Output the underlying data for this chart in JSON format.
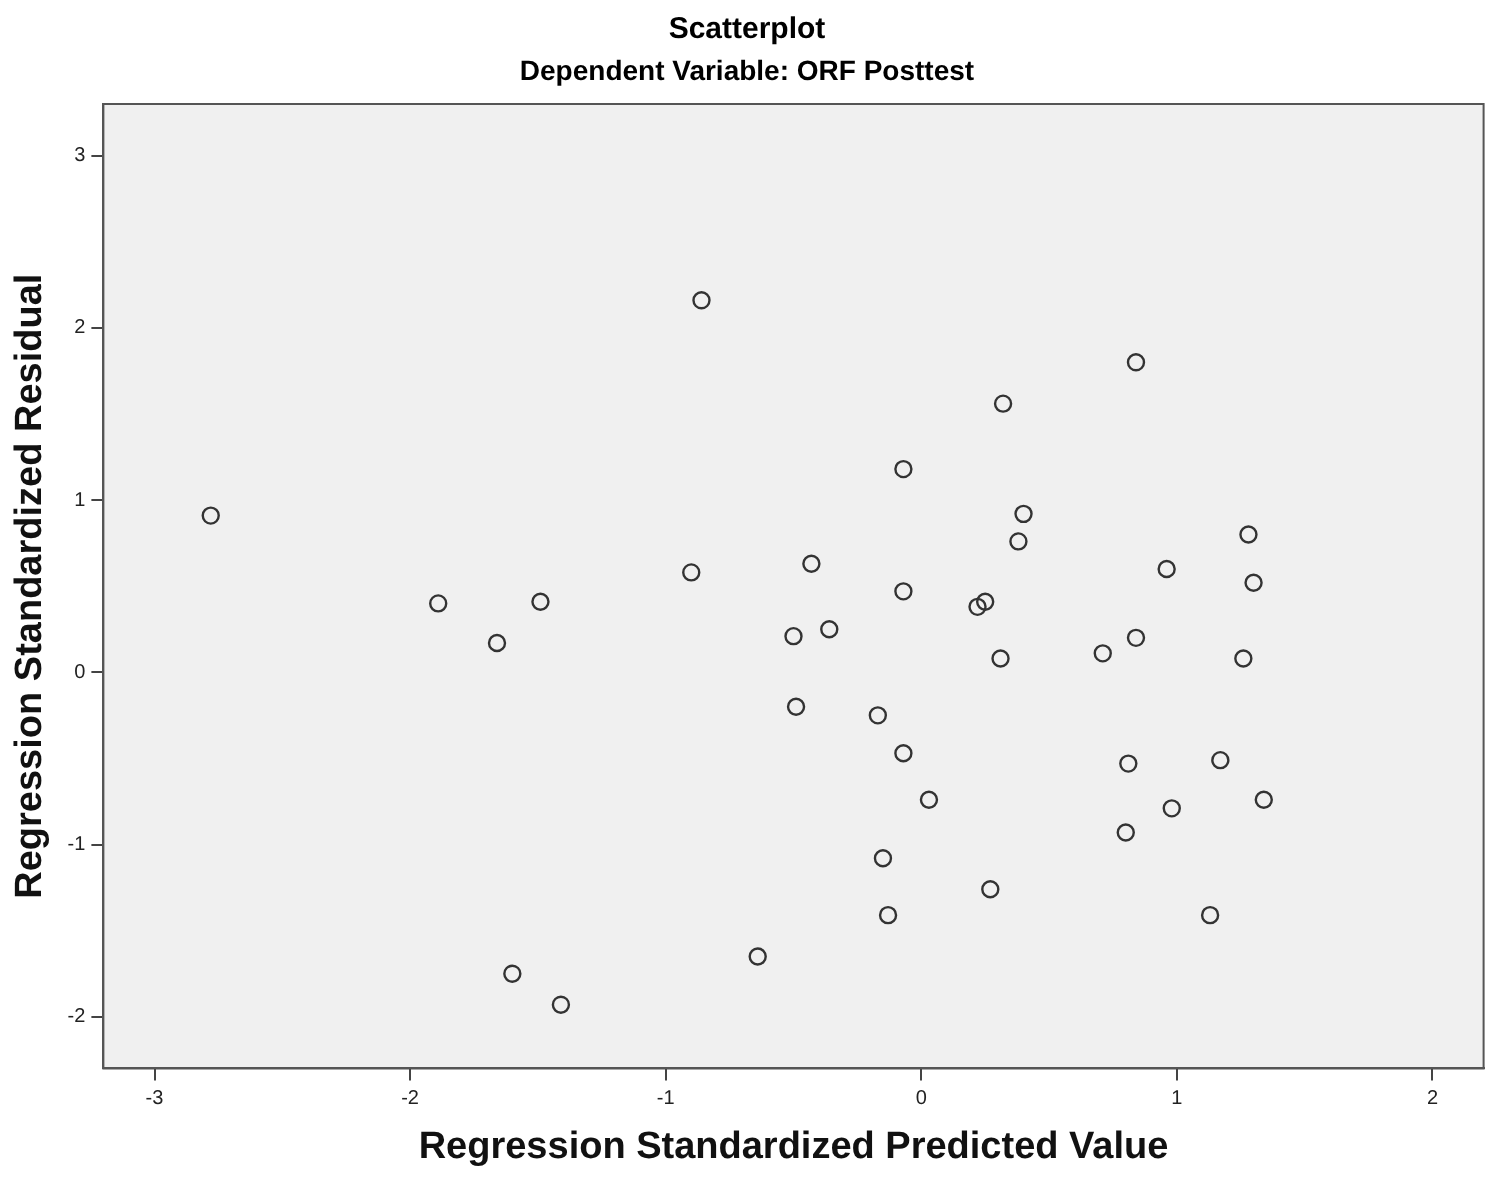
{
  "chart_data": {
    "type": "scatter",
    "title": "Scatterplot",
    "subtitle": "Dependent Variable: ORF Posttest",
    "xlabel": "Regression Standardized Predicted Value",
    "ylabel": "Regression Standardized Residual",
    "x": [
      -2.78,
      -1.89,
      -1.66,
      -1.49,
      -0.86,
      -0.9,
      -0.43,
      -0.5,
      -0.36,
      -0.49,
      -0.17,
      -0.07,
      0.03,
      -0.07,
      -0.07,
      0.22,
      0.25,
      0.32,
      0.4,
      0.38,
      0.31,
      -0.15,
      -0.13,
      0.27,
      -0.64,
      -1.6,
      -1.41,
      0.84,
      0.71,
      0.84,
      0.96,
      1.28,
      1.3,
      1.26,
      0.81,
      1.17,
      0.98,
      1.34,
      0.8,
      1.13
    ],
    "values": [
      0.91,
      0.4,
      0.17,
      0.41,
      2.16,
      0.58,
      0.63,
      0.21,
      0.25,
      -0.2,
      -0.25,
      -0.47,
      -0.74,
      0.47,
      1.18,
      0.38,
      0.41,
      1.56,
      0.92,
      0.76,
      0.08,
      -1.08,
      -1.41,
      -1.26,
      -1.65,
      -1.75,
      -1.93,
      1.8,
      0.11,
      0.2,
      0.6,
      0.8,
      0.52,
      0.08,
      -0.53,
      -0.51,
      -0.79,
      -0.74,
      -0.93,
      -1.41
    ],
    "color": "#333333",
    "marker": "circle",
    "grid": false,
    "legend": false,
    "xlim": [
      -3.2,
      2.2
    ],
    "ylim": [
      -2.3,
      3.3
    ],
    "xticks": [
      -3,
      -2,
      -1,
      0,
      1,
      2
    ],
    "yticks": [
      -2,
      -1,
      0,
      1,
      2,
      3
    ]
  }
}
